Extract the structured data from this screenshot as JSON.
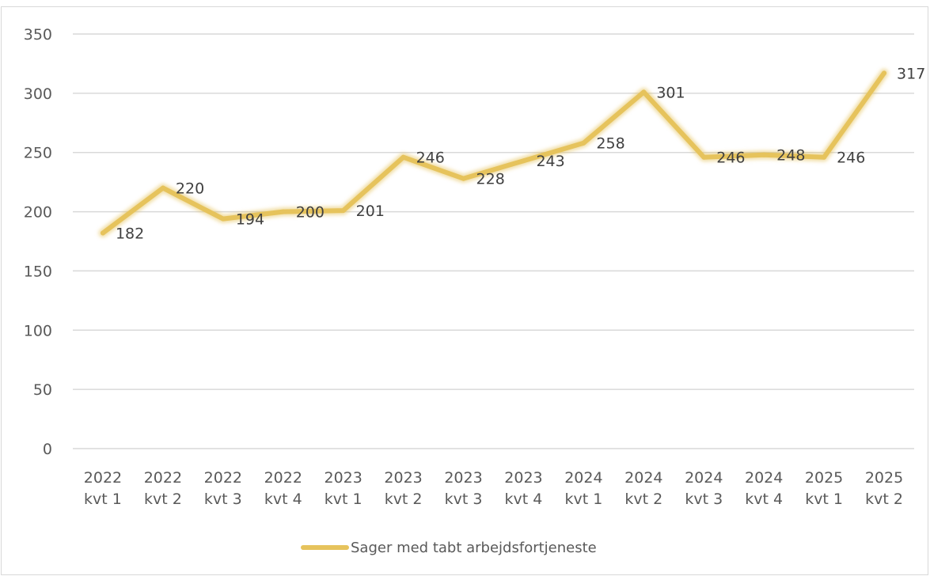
{
  "chart_data": {
    "type": "line",
    "categories": [
      [
        "2022",
        "kvt 1"
      ],
      [
        "2022",
        "kvt 2"
      ],
      [
        "2022",
        "kvt 3"
      ],
      [
        "2022",
        "kvt 4"
      ],
      [
        "2023",
        "kvt 1"
      ],
      [
        "2023",
        "kvt 2"
      ],
      [
        "2023",
        "kvt 3"
      ],
      [
        "2023",
        "kvt 4"
      ],
      [
        "2024",
        "kvt 1"
      ],
      [
        "2024",
        "kvt 2"
      ],
      [
        "2024",
        "kvt 3"
      ],
      [
        "2024",
        "kvt 4"
      ],
      [
        "2025",
        "kvt 1"
      ],
      [
        "2025",
        "kvt 2"
      ]
    ],
    "series": [
      {
        "name": "Sager med tabt arbejdsfortjeneste",
        "color": "#e6c35c",
        "values": [
          182,
          220,
          194,
          200,
          201,
          246,
          228,
          243,
          258,
          301,
          246,
          248,
          246,
          317
        ]
      }
    ],
    "yticks": [
      "0",
      "50",
      "100",
      "150",
      "200",
      "250",
      "300",
      "350"
    ],
    "ylim": [
      0,
      350
    ],
    "grid": true,
    "legend": "bottom",
    "title": "",
    "xlabel": "",
    "ylabel": ""
  }
}
